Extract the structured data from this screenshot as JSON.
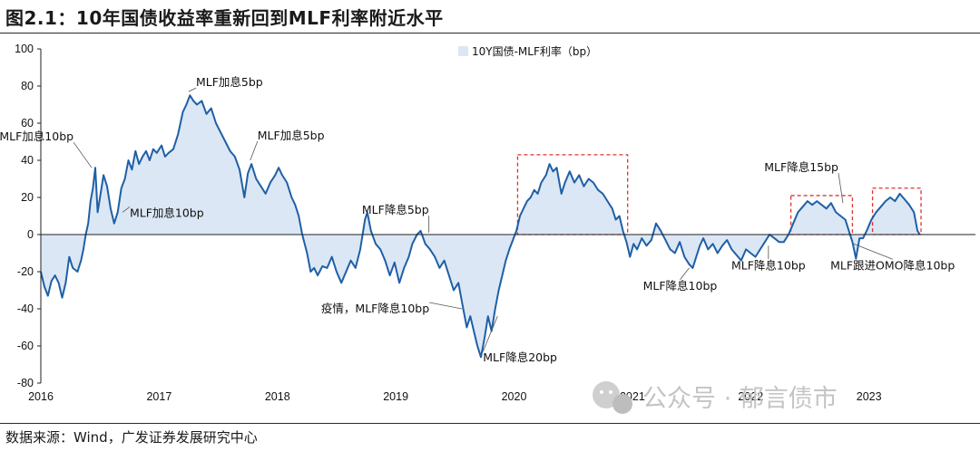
{
  "header": {
    "title": "图2.1：10年国债收益率重新回到MLF利率附近水平"
  },
  "footer": {
    "source": "数据来源：Wind，广发证券发展研究中心"
  },
  "watermark": {
    "text": "公众号 · 郁言债市",
    "icon": "wechat-icon"
  },
  "colors": {
    "line": "#1f5fa6",
    "fill": "#dbe7f5",
    "highlight_box": "#e03030",
    "axis": "#222222"
  },
  "chart_data": {
    "type": "area",
    "title": "",
    "xlabel": "",
    "ylabel": "",
    "ylim": [
      -80,
      100
    ],
    "yticks": [
      -80,
      -60,
      -40,
      -20,
      0,
      20,
      40,
      60,
      80,
      100
    ],
    "xlim": [
      2016.0,
      2023.9
    ],
    "xticks": [
      2016,
      2017,
      2018,
      2019,
      2020,
      2021,
      2022,
      2023
    ],
    "grid": false,
    "legend": {
      "position": "top-right"
    },
    "series": [
      {
        "name": "10Y国债-MLF利率（bp）",
        "points": [
          [
            2016.0,
            -20
          ],
          [
            2016.03,
            -28
          ],
          [
            2016.06,
            -33
          ],
          [
            2016.09,
            -25
          ],
          [
            2016.12,
            -22
          ],
          [
            2016.15,
            -26
          ],
          [
            2016.18,
            -34
          ],
          [
            2016.21,
            -26
          ],
          [
            2016.24,
            -12
          ],
          [
            2016.27,
            -18
          ],
          [
            2016.31,
            -20
          ],
          [
            2016.34,
            -14
          ],
          [
            2016.36,
            -8
          ],
          [
            2016.38,
            0
          ],
          [
            2016.4,
            6
          ],
          [
            2016.42,
            18
          ],
          [
            2016.44,
            25
          ],
          [
            2016.46,
            36
          ],
          [
            2016.48,
            12
          ],
          [
            2016.5,
            20
          ],
          [
            2016.53,
            32
          ],
          [
            2016.56,
            26
          ],
          [
            2016.59,
            14
          ],
          [
            2016.62,
            6
          ],
          [
            2016.65,
            12
          ],
          [
            2016.68,
            25
          ],
          [
            2016.71,
            30
          ],
          [
            2016.74,
            40
          ],
          [
            2016.77,
            35
          ],
          [
            2016.8,
            45
          ],
          [
            2016.83,
            38
          ],
          [
            2016.86,
            42
          ],
          [
            2016.89,
            45
          ],
          [
            2016.92,
            40
          ],
          [
            2016.95,
            46
          ],
          [
            2016.98,
            44
          ],
          [
            2017.02,
            48
          ],
          [
            2017.05,
            42
          ],
          [
            2017.08,
            44
          ],
          [
            2017.12,
            46
          ],
          [
            2017.16,
            54
          ],
          [
            2017.2,
            66
          ],
          [
            2017.23,
            70
          ],
          [
            2017.26,
            75
          ],
          [
            2017.29,
            72
          ],
          [
            2017.32,
            70
          ],
          [
            2017.36,
            72
          ],
          [
            2017.4,
            65
          ],
          [
            2017.44,
            68
          ],
          [
            2017.48,
            60
          ],
          [
            2017.52,
            55
          ],
          [
            2017.56,
            50
          ],
          [
            2017.6,
            45
          ],
          [
            2017.64,
            42
          ],
          [
            2017.68,
            35
          ],
          [
            2017.72,
            20
          ],
          [
            2017.75,
            33
          ],
          [
            2017.78,
            38
          ],
          [
            2017.82,
            30
          ],
          [
            2017.86,
            26
          ],
          [
            2017.9,
            22
          ],
          [
            2017.94,
            28
          ],
          [
            2017.98,
            32
          ],
          [
            2018.01,
            36
          ],
          [
            2018.04,
            32
          ],
          [
            2018.08,
            28
          ],
          [
            2018.12,
            20
          ],
          [
            2018.15,
            16
          ],
          [
            2018.18,
            10
          ],
          [
            2018.21,
            0
          ],
          [
            2018.25,
            -10
          ],
          [
            2018.28,
            -20
          ],
          [
            2018.31,
            -18
          ],
          [
            2018.34,
            -22
          ],
          [
            2018.38,
            -17
          ],
          [
            2018.42,
            -18
          ],
          [
            2018.46,
            -12
          ],
          [
            2018.5,
            -20
          ],
          [
            2018.54,
            -26
          ],
          [
            2018.58,
            -20
          ],
          [
            2018.62,
            -14
          ],
          [
            2018.66,
            -18
          ],
          [
            2018.7,
            -8
          ],
          [
            2018.74,
            8
          ],
          [
            2018.76,
            12
          ],
          [
            2018.79,
            2
          ],
          [
            2018.83,
            -5
          ],
          [
            2018.87,
            -8
          ],
          [
            2018.91,
            -14
          ],
          [
            2018.95,
            -22
          ],
          [
            2018.99,
            -15
          ],
          [
            2019.03,
            -26
          ],
          [
            2019.07,
            -18
          ],
          [
            2019.11,
            -12
          ],
          [
            2019.14,
            -5
          ],
          [
            2019.18,
            0
          ],
          [
            2019.21,
            2
          ],
          [
            2019.25,
            -5
          ],
          [
            2019.29,
            -8
          ],
          [
            2019.33,
            -12
          ],
          [
            2019.37,
            -18
          ],
          [
            2019.41,
            -14
          ],
          [
            2019.45,
            -22
          ],
          [
            2019.49,
            -30
          ],
          [
            2019.53,
            -26
          ],
          [
            2019.57,
            -40
          ],
          [
            2019.6,
            -50
          ],
          [
            2019.63,
            -44
          ],
          [
            2019.66,
            -52
          ],
          [
            2019.69,
            -60
          ],
          [
            2019.72,
            -66
          ],
          [
            2019.75,
            -56
          ],
          [
            2019.78,
            -44
          ],
          [
            2019.81,
            -52
          ],
          [
            2019.84,
            -40
          ],
          [
            2019.87,
            -30
          ],
          [
            2019.9,
            -22
          ],
          [
            2019.93,
            -14
          ],
          [
            2019.96,
            -8
          ],
          [
            2019.99,
            -3
          ],
          [
            2020.02,
            2
          ],
          [
            2020.05,
            10
          ],
          [
            2020.08,
            14
          ],
          [
            2020.11,
            18
          ],
          [
            2020.14,
            20
          ],
          [
            2020.17,
            24
          ],
          [
            2020.2,
            22
          ],
          [
            2020.23,
            28
          ],
          [
            2020.27,
            32
          ],
          [
            2020.3,
            38
          ],
          [
            2020.33,
            34
          ],
          [
            2020.36,
            36
          ],
          [
            2020.4,
            22
          ],
          [
            2020.43,
            28
          ],
          [
            2020.47,
            34
          ],
          [
            2020.51,
            28
          ],
          [
            2020.55,
            32
          ],
          [
            2020.59,
            26
          ],
          [
            2020.63,
            30
          ],
          [
            2020.67,
            28
          ],
          [
            2020.71,
            24
          ],
          [
            2020.75,
            22
          ],
          [
            2020.79,
            18
          ],
          [
            2020.83,
            14
          ],
          [
            2020.86,
            8
          ],
          [
            2020.89,
            10
          ],
          [
            2020.92,
            2
          ],
          [
            2020.95,
            -4
          ],
          [
            2020.98,
            -12
          ],
          [
            2021.01,
            -5
          ],
          [
            2021.04,
            -8
          ],
          [
            2021.08,
            -2
          ],
          [
            2021.12,
            -6
          ],
          [
            2021.16,
            -3
          ],
          [
            2021.2,
            6
          ],
          [
            2021.24,
            2
          ],
          [
            2021.28,
            -3
          ],
          [
            2021.32,
            -8
          ],
          [
            2021.36,
            -10
          ],
          [
            2021.4,
            -4
          ],
          [
            2021.44,
            -12
          ],
          [
            2021.48,
            -16
          ],
          [
            2021.51,
            -18
          ],
          [
            2021.54,
            -12
          ],
          [
            2021.57,
            -6
          ],
          [
            2021.6,
            -2
          ],
          [
            2021.64,
            -8
          ],
          [
            2021.68,
            -5
          ],
          [
            2021.72,
            -10
          ],
          [
            2021.76,
            -6
          ],
          [
            2021.8,
            -3
          ],
          [
            2021.84,
            -8
          ],
          [
            2021.88,
            -11
          ],
          [
            2021.92,
            -14
          ],
          [
            2021.96,
            -8
          ],
          [
            2022.0,
            -10
          ],
          [
            2022.04,
            -12
          ],
          [
            2022.08,
            -8
          ],
          [
            2022.12,
            -4
          ],
          [
            2022.16,
            0
          ],
          [
            2022.2,
            -2
          ],
          [
            2022.24,
            -4
          ],
          [
            2022.28,
            -4
          ],
          [
            2022.32,
            0
          ],
          [
            2022.36,
            6
          ],
          [
            2022.4,
            12
          ],
          [
            2022.44,
            15
          ],
          [
            2022.48,
            18
          ],
          [
            2022.52,
            16
          ],
          [
            2022.56,
            18
          ],
          [
            2022.6,
            16
          ],
          [
            2022.64,
            14
          ],
          [
            2022.68,
            17
          ],
          [
            2022.72,
            12
          ],
          [
            2022.76,
            10
          ],
          [
            2022.8,
            8
          ],
          [
            2022.83,
            2
          ],
          [
            2022.86,
            -4
          ],
          [
            2022.89,
            -13
          ],
          [
            2022.92,
            -2
          ],
          [
            2022.95,
            -2
          ],
          [
            2022.98,
            2
          ],
          [
            2023.02,
            8
          ],
          [
            2023.06,
            12
          ],
          [
            2023.1,
            15
          ],
          [
            2023.14,
            18
          ],
          [
            2023.18,
            20
          ],
          [
            2023.22,
            18
          ],
          [
            2023.26,
            22
          ],
          [
            2023.3,
            19
          ],
          [
            2023.34,
            16
          ],
          [
            2023.38,
            12
          ],
          [
            2023.41,
            2
          ],
          [
            2023.43,
            0
          ]
        ]
      }
    ],
    "annotations": [
      {
        "text": "MLF加息10bp",
        "x": 2016.43,
        "y": 36
      },
      {
        "text": "MLF加息10bp",
        "x": 2016.69,
        "y": 12
      },
      {
        "text": "MLF加息5bp",
        "x": 2017.25,
        "y": 77
      },
      {
        "text": "MLF加息5bp",
        "x": 2017.77,
        "y": 40
      },
      {
        "text": "MLF降息5bp",
        "x": 2019.28,
        "y": 1
      },
      {
        "text": "疫情，MLF降息10bp",
        "x": 2019.56,
        "y": -40
      },
      {
        "text": "MLF降息20bp",
        "x": 2019.86,
        "y": -44
      },
      {
        "text": "MLF降息10bp",
        "x": 2021.48,
        "y": -18
      },
      {
        "text": "MLF降息10bp",
        "x": 2022.15,
        "y": -6
      },
      {
        "text": "MLF降息15bp",
        "x": 2022.78,
        "y": 17
      },
      {
        "text": "MLF跟进OMO降息10bp",
        "x": 2022.87,
        "y": -5
      }
    ],
    "highlight_boxes": [
      {
        "x0": 2020.03,
        "x1": 2020.96,
        "y0": 0,
        "y1": 43
      },
      {
        "x0": 2022.34,
        "x1": 2022.86,
        "y0": 0,
        "y1": 21
      },
      {
        "x0": 2023.03,
        "x1": 2023.44,
        "y0": 0,
        "y1": 25
      }
    ]
  }
}
